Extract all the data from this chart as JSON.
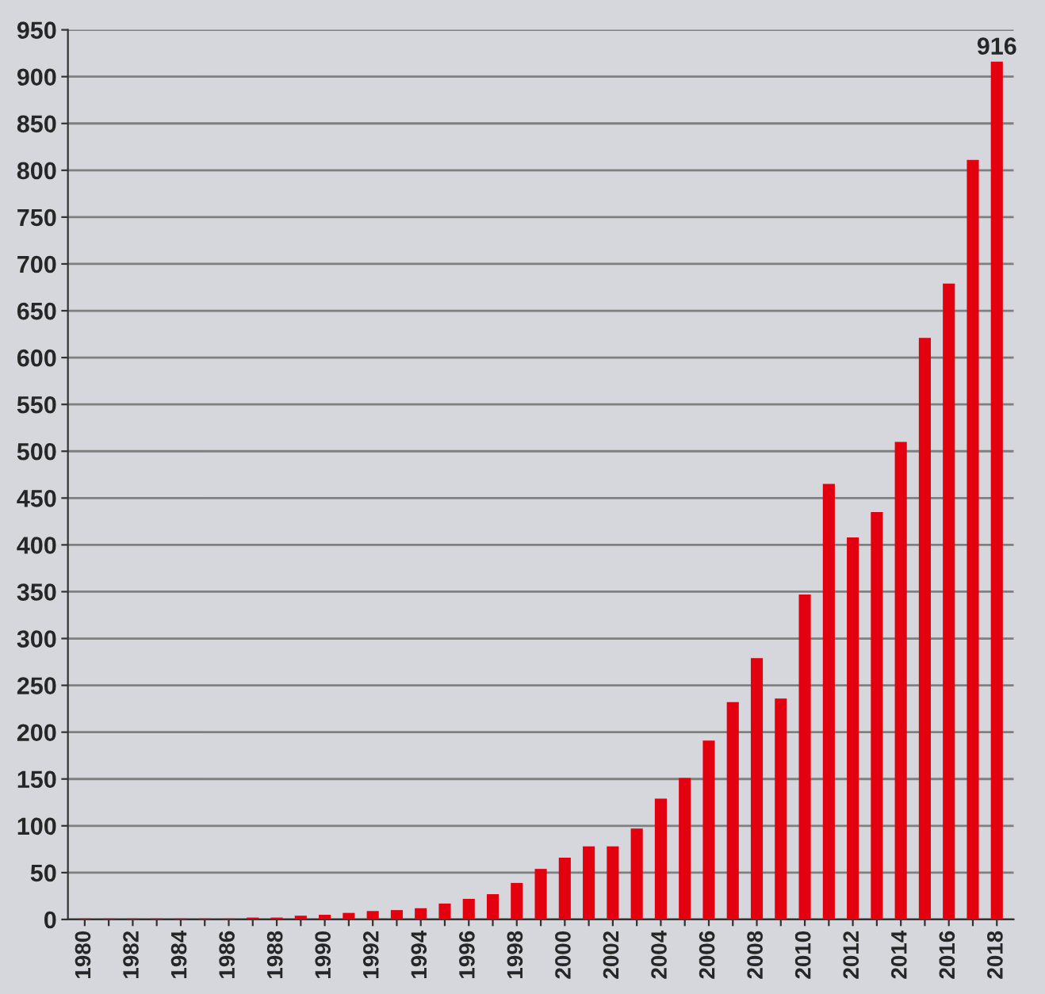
{
  "chart_data": {
    "type": "bar",
    "categories": [
      "1980",
      null,
      "1982",
      null,
      "1984",
      null,
      "1986",
      null,
      "1988",
      null,
      "1990",
      null,
      "1992",
      null,
      "1994",
      null,
      "1996",
      null,
      "1998",
      null,
      "2000",
      null,
      "2002",
      null,
      "2004",
      null,
      "2006",
      null,
      "2008",
      null,
      "2010",
      null,
      "2012",
      null,
      "2014",
      null,
      "2016",
      null,
      "2018"
    ],
    "values": [
      1,
      1,
      1,
      1,
      1,
      1,
      1,
      2,
      2,
      4,
      5,
      7,
      9,
      10,
      12,
      17,
      22,
      27,
      39,
      54,
      66,
      78,
      78,
      97,
      129,
      151,
      191,
      232,
      279,
      236,
      347,
      465,
      408,
      435,
      510,
      621,
      679,
      811,
      916
    ],
    "value_labels": [
      null,
      null,
      null,
      null,
      null,
      null,
      null,
      null,
      null,
      null,
      null,
      null,
      null,
      null,
      null,
      null,
      null,
      null,
      null,
      null,
      null,
      null,
      null,
      null,
      null,
      null,
      null,
      null,
      null,
      null,
      null,
      null,
      null,
      null,
      null,
      null,
      null,
      null,
      "916"
    ],
    "color": "#e3000f",
    "ylim": [
      0,
      950
    ],
    "yticks": [
      0,
      50,
      100,
      150,
      200,
      250,
      300,
      350,
      400,
      450,
      500,
      550,
      600,
      650,
      700,
      750,
      800,
      850,
      900,
      950
    ],
    "grid": "y",
    "legend": false
  }
}
